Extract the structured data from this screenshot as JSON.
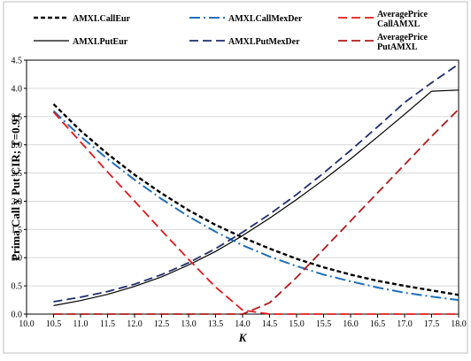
{
  "chart_data": {
    "type": "line",
    "title": "",
    "xlabel": "K",
    "ylabel": "Prima Call y Put CIR; T=0.91",
    "xlim": [
      10.0,
      18.0
    ],
    "ylim": [
      0.0,
      4.5
    ],
    "x_ticks": [
      "10.0",
      "10.5",
      "11.0",
      "11.5",
      "12.0",
      "12.5",
      "13.0",
      "13.5",
      "14.0",
      "14.5",
      "15.0",
      "15.5",
      "16.0",
      "16.5",
      "17.0",
      "17.5",
      "18.0"
    ],
    "y_ticks": [
      "0.0",
      "0.5",
      "1.0",
      "1.5",
      "2.0",
      "2.5",
      "3.0",
      "3.5",
      "4.0",
      "4.5"
    ],
    "grid": "horizontal",
    "legend_position": "top",
    "x": [
      10.5,
      11.0,
      11.5,
      12.0,
      12.5,
      13.0,
      13.5,
      14.0,
      14.5,
      15.0,
      15.5,
      16.0,
      16.5,
      17.0,
      17.5,
      18.0
    ],
    "series": [
      {
        "name": "AMXLCallEur",
        "color": "#000000",
        "dash": "short-dash",
        "values": [
          3.72,
          3.25,
          2.84,
          2.47,
          2.14,
          1.84,
          1.58,
          1.36,
          1.16,
          0.98,
          0.83,
          0.7,
          0.59,
          0.5,
          0.42,
          0.34
        ]
      },
      {
        "name": "AMXLPutEur",
        "color": "#000000",
        "dash": "solid",
        "values": [
          0.15,
          0.24,
          0.35,
          0.49,
          0.66,
          0.87,
          1.11,
          1.39,
          1.7,
          2.03,
          2.38,
          2.75,
          3.14,
          3.54,
          3.95,
          3.97
        ]
      },
      {
        "name": "AMXLCallMexDer",
        "color": "#1f6fb8",
        "dash": "dash-dot",
        "values": [
          3.6,
          3.15,
          2.75,
          2.38,
          2.04,
          1.73,
          1.46,
          1.22,
          1.02,
          0.85,
          0.7,
          0.58,
          0.47,
          0.38,
          0.31,
          0.25
        ]
      },
      {
        "name": "AMXLPutMexDer",
        "color": "#1f2d6b",
        "dash": "long-dash",
        "values": [
          0.22,
          0.3,
          0.4,
          0.53,
          0.7,
          0.91,
          1.16,
          1.45,
          1.77,
          2.12,
          2.5,
          2.9,
          3.32,
          3.75,
          4.1,
          4.43
        ]
      },
      {
        "name": "AveragePrice CallAMXL",
        "color": "#e0191b",
        "dash": "long-dash",
        "values": [
          3.58,
          3.05,
          2.52,
          2.0,
          1.48,
          0.97,
          0.48,
          0.07,
          0.0,
          0.0,
          0.0,
          0.0,
          0.0,
          0.0,
          0.0,
          0.0
        ]
      },
      {
        "name": "AveragePrice PutAMXL",
        "color": "#b01a1a",
        "dash": "long-dash",
        "values": [
          0.0,
          0.0,
          0.0,
          0.0,
          0.0,
          0.0,
          0.0,
          0.0,
          0.2,
          0.65,
          1.15,
          1.65,
          2.15,
          2.65,
          3.15,
          3.63
        ]
      }
    ]
  }
}
